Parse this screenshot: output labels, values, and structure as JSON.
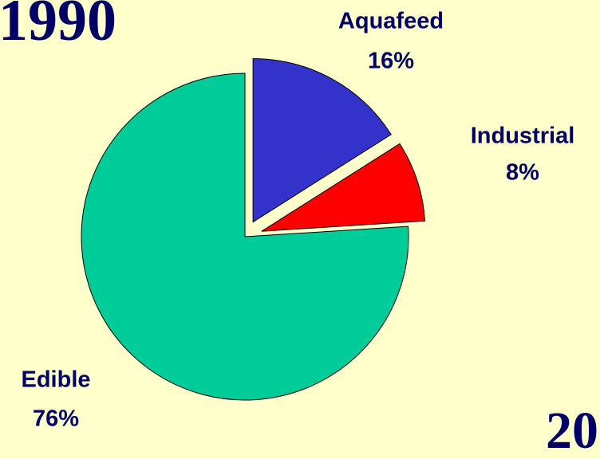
{
  "chart_data": {
    "type": "pie",
    "title": "1990",
    "annotations": [
      "20"
    ],
    "categories": [
      "Aquafeed",
      "Industrial",
      "Edible"
    ],
    "values": [
      16,
      8,
      76
    ],
    "value_labels": [
      "16%",
      "8%",
      "76%"
    ],
    "colors": [
      "#3333cc",
      "#ff0000",
      "#00cc99"
    ]
  }
}
